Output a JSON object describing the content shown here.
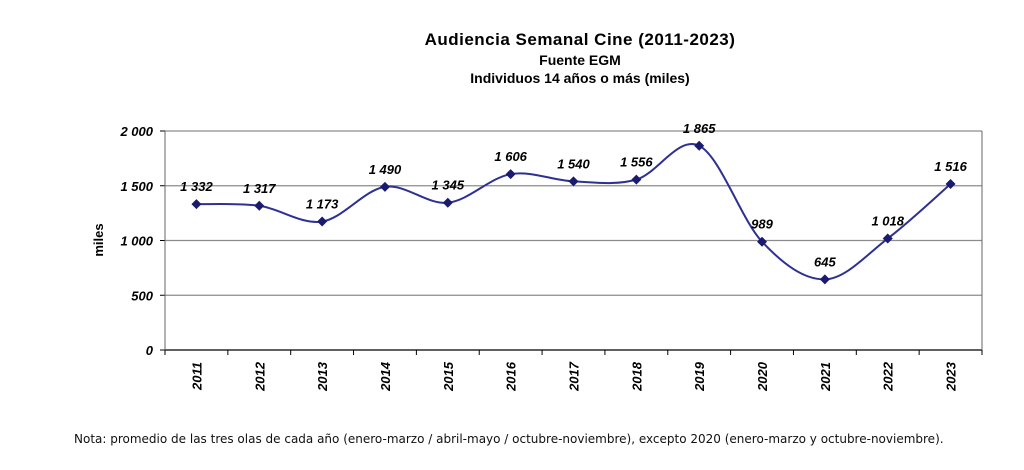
{
  "chart_data": {
    "type": "line",
    "title": "Audiencia  Semanal  Cine  (2011-2023)",
    "subtitle": "Fuente EGM",
    "subtitle2": "Individuos 14 años o más (miles)",
    "ylabel": "miles",
    "xlabel": "",
    "ylim": [
      0,
      2000
    ],
    "yticks": [
      0,
      500,
      1000,
      1500,
      2000
    ],
    "ytick_labels": [
      "0",
      "500",
      "1 000",
      "1 500",
      "2 000"
    ],
    "grid": true,
    "categories": [
      "2011",
      "2012",
      "2013",
      "2014",
      "2015",
      "2016",
      "2017",
      "2018",
      "2019",
      "2020",
      "2021",
      "2022",
      "2023"
    ],
    "series": [
      {
        "values": [
          1332,
          1317,
          1173,
          1490,
          1345,
          1606,
          1540,
          1556,
          1865,
          989,
          645,
          1018,
          1516
        ],
        "labels": [
          "1 332",
          "1 317",
          "1 173",
          "1 490",
          "1 345",
          "1 606",
          "1 540",
          "1 556",
          "1 865",
          "989",
          "645",
          "1 018",
          "1 516"
        ]
      }
    ],
    "colors": {
      "line": "#2e3192",
      "marker": "#1a1a6e",
      "grid": "#8c8c8c",
      "axis": "#000000"
    }
  },
  "note": "Nota: promedio de las tres olas de cada año (enero-marzo / abril-mayo / octubre-noviembre), excepto 2020 (enero-marzo y octubre-noviembre)."
}
